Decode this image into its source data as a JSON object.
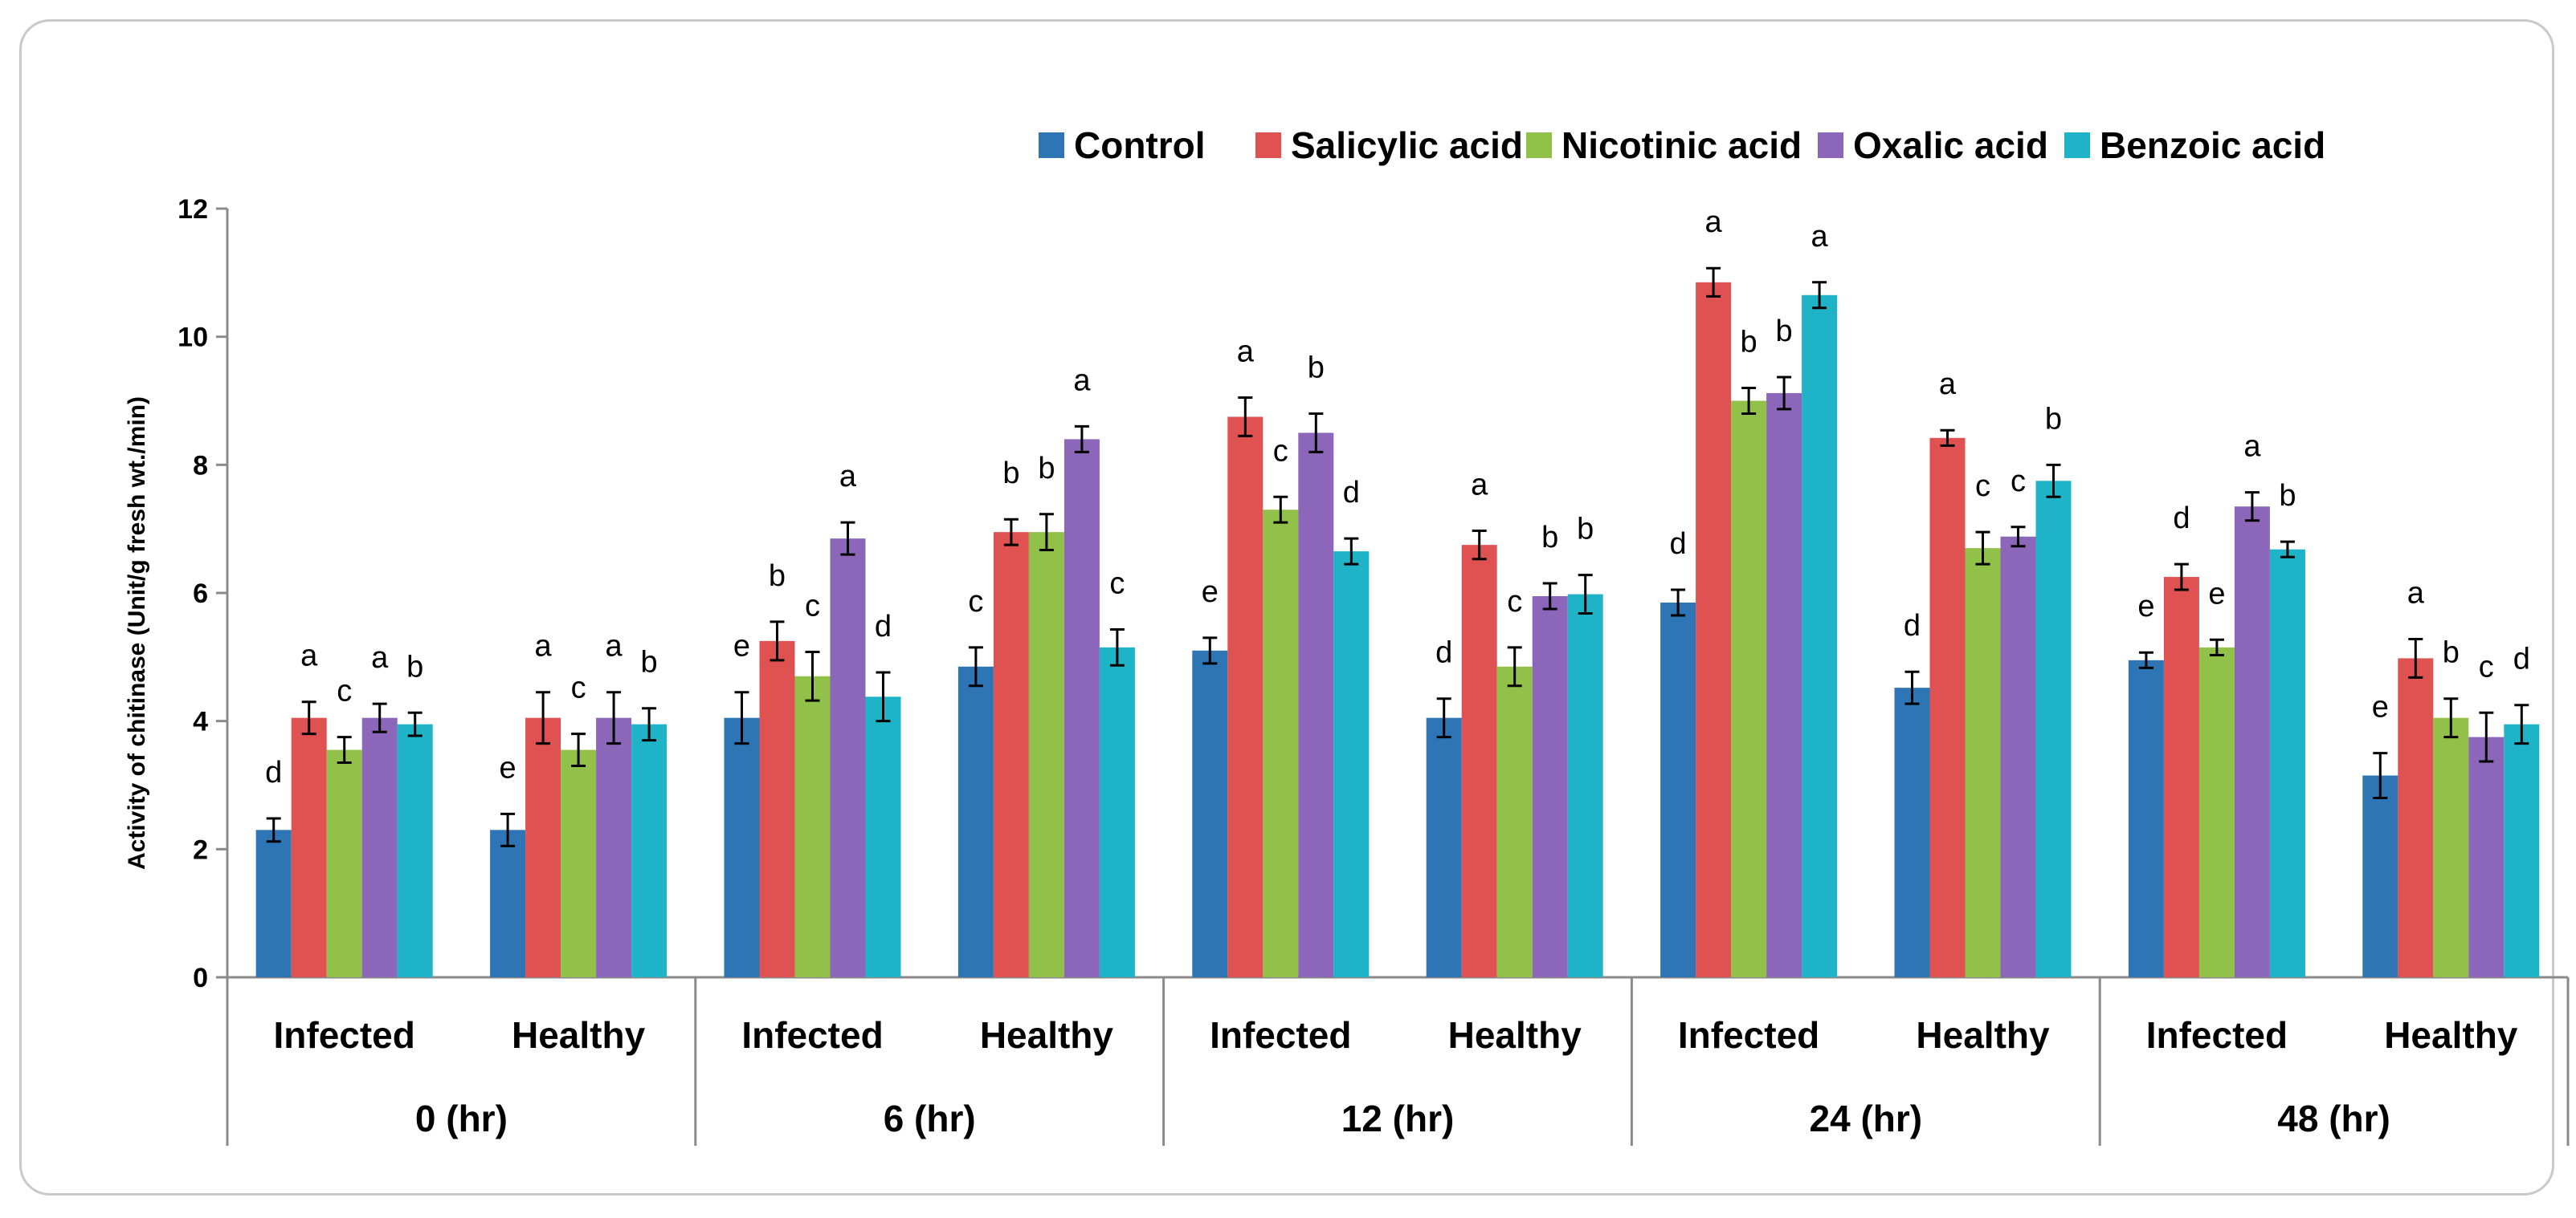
{
  "chart_data": {
    "type": "bar",
    "title": "",
    "ylabel": "Activity of chitinase (Unit/g fresh wt./min)",
    "xlabel": "",
    "ylim": [
      0,
      12
    ],
    "yticks": [
      0,
      2,
      4,
      6,
      8,
      10,
      12
    ],
    "legend_position": "top-right",
    "groups": [
      {
        "label": "0 (hr)",
        "categories": [
          "Infected",
          "Healthy"
        ]
      },
      {
        "label": "6 (hr)",
        "categories": [
          "Infected",
          "Healthy"
        ]
      },
      {
        "label": "12 (hr)",
        "categories": [
          "Infected",
          "Healthy"
        ]
      },
      {
        "label": "24 (hr)",
        "categories": [
          "Infected",
          "Healthy"
        ]
      },
      {
        "label": "48 (hr)",
        "categories": [
          "Infected",
          "Healthy"
        ]
      }
    ],
    "series": [
      {
        "name": "Control",
        "color": "#2e75b6",
        "values": [
          2.3,
          2.3,
          4.05,
          4.85,
          5.1,
          4.05,
          5.85,
          4.52,
          4.95,
          3.15
        ],
        "errors": [
          0.18,
          0.25,
          0.4,
          0.3,
          0.2,
          0.3,
          0.2,
          0.25,
          0.12,
          0.35
        ],
        "letters": [
          "d",
          "e",
          "e",
          "c",
          "e",
          "d",
          "d",
          "d",
          "e",
          "e"
        ]
      },
      {
        "name": "Salicylic acid",
        "color": "#e05252",
        "values": [
          4.05,
          4.05,
          5.25,
          6.95,
          8.75,
          6.75,
          10.85,
          8.42,
          6.25,
          4.98
        ],
        "errors": [
          0.25,
          0.4,
          0.3,
          0.2,
          0.3,
          0.22,
          0.22,
          0.12,
          0.2,
          0.3
        ],
        "letters": [
          "a",
          "a",
          "b",
          "b",
          "a",
          "a",
          "a",
          "a",
          "d",
          "a"
        ]
      },
      {
        "name": "Nicotinic acid",
        "color": "#92c14a",
        "values": [
          3.55,
          3.55,
          4.7,
          6.95,
          7.3,
          4.85,
          9.0,
          6.7,
          5.15,
          4.05
        ],
        "errors": [
          0.2,
          0.25,
          0.38,
          0.28,
          0.2,
          0.3,
          0.2,
          0.25,
          0.12,
          0.3
        ],
        "letters": [
          "c",
          "c",
          "c",
          "b",
          "c",
          "c",
          "b",
          "c",
          "e",
          "b"
        ]
      },
      {
        "name": "Oxalic acid",
        "color": "#8c66b8",
        "values": [
          4.05,
          4.05,
          6.85,
          8.4,
          8.5,
          5.95,
          9.12,
          6.88,
          7.35,
          3.75
        ],
        "errors": [
          0.22,
          0.4,
          0.25,
          0.2,
          0.3,
          0.2,
          0.25,
          0.15,
          0.22,
          0.38
        ],
        "letters": [
          "a",
          "a",
          "a",
          "a",
          "b",
          "b",
          "b",
          "c",
          "a",
          "c"
        ]
      },
      {
        "name": "Benzoic acid",
        "color": "#1fb3c8",
        "values": [
          3.95,
          3.95,
          4.38,
          5.15,
          6.65,
          5.98,
          10.65,
          7.75,
          6.68,
          3.95
        ],
        "errors": [
          0.18,
          0.25,
          0.38,
          0.28,
          0.2,
          0.3,
          0.2,
          0.25,
          0.12,
          0.3
        ],
        "letters": [
          "b",
          "b",
          "d",
          "c",
          "d",
          "b",
          "a",
          "b",
          "b",
          "d"
        ]
      }
    ]
  }
}
